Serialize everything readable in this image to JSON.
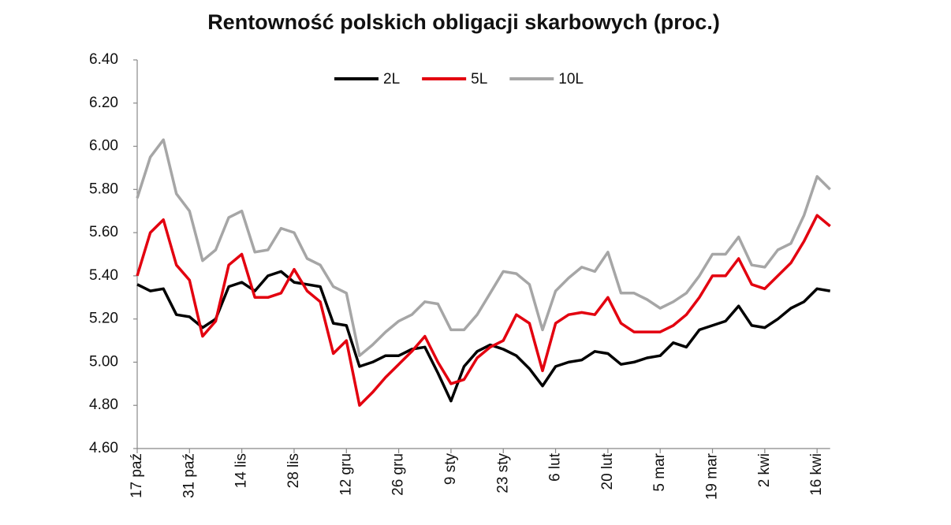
{
  "chart_data": {
    "type": "line",
    "title": "Rentowność polskich obligacji skarbowych (proc.)",
    "categories": [
      "17 paź",
      null,
      null,
      null,
      "31 paź",
      null,
      null,
      null,
      "14 lis",
      null,
      null,
      null,
      "28 lis",
      null,
      null,
      null,
      "12 gru",
      null,
      null,
      null,
      "26 gru",
      null,
      null,
      null,
      "9 sty",
      null,
      null,
      null,
      "23 sty",
      null,
      null,
      null,
      "6 lut",
      null,
      null,
      null,
      "20 lut",
      null,
      null,
      null,
      "5 mar",
      null,
      null,
      null,
      "19 mar",
      null,
      null,
      null,
      "2 kwi",
      null,
      null,
      null,
      "16 kwi",
      null
    ],
    "series": [
      {
        "name": "2L",
        "color": "#000000",
        "values": [
          5.36,
          5.33,
          5.34,
          5.22,
          5.21,
          5.16,
          5.2,
          5.35,
          5.37,
          5.33,
          5.4,
          5.42,
          5.37,
          5.36,
          5.35,
          5.18,
          5.17,
          4.98,
          5.0,
          5.03,
          5.03,
          5.06,
          5.07,
          4.95,
          4.82,
          4.98,
          5.05,
          5.08,
          5.06,
          5.03,
          4.97,
          4.89,
          4.98,
          5.0,
          5.01,
          5.05,
          5.04,
          4.99,
          5.0,
          5.02,
          5.03,
          5.09,
          5.07,
          5.15,
          5.17,
          5.19,
          5.26,
          5.17,
          5.16,
          5.2,
          5.25,
          5.28,
          5.34,
          5.33
        ]
      },
      {
        "name": "5L",
        "color": "#e3000f",
        "values": [
          5.4,
          5.6,
          5.66,
          5.45,
          5.38,
          5.12,
          5.19,
          5.45,
          5.5,
          5.3,
          5.3,
          5.32,
          5.43,
          5.33,
          5.28,
          5.04,
          5.1,
          4.8,
          4.86,
          4.93,
          4.99,
          5.05,
          5.12,
          5.0,
          4.9,
          4.92,
          5.02,
          5.07,
          5.1,
          5.22,
          5.18,
          4.96,
          5.18,
          5.22,
          5.23,
          5.22,
          5.3,
          5.18,
          5.14,
          5.14,
          5.14,
          5.17,
          5.22,
          5.3,
          5.4,
          5.4,
          5.48,
          5.36,
          5.34,
          5.4,
          5.46,
          5.56,
          5.68,
          5.63
        ]
      },
      {
        "name": "10L",
        "color": "#a6a6a6",
        "values": [
          5.76,
          5.95,
          6.03,
          5.78,
          5.7,
          5.47,
          5.52,
          5.67,
          5.7,
          5.51,
          5.52,
          5.62,
          5.6,
          5.48,
          5.45,
          5.35,
          5.32,
          5.03,
          5.08,
          5.14,
          5.19,
          5.22,
          5.28,
          5.27,
          5.15,
          5.15,
          5.22,
          5.32,
          5.42,
          5.41,
          5.36,
          5.15,
          5.33,
          5.39,
          5.44,
          5.42,
          5.51,
          5.32,
          5.32,
          5.29,
          5.25,
          5.28,
          5.32,
          5.4,
          5.5,
          5.5,
          5.58,
          5.45,
          5.44,
          5.52,
          5.55,
          5.68,
          5.86,
          5.8
        ]
      }
    ],
    "ylim": [
      4.6,
      6.4
    ],
    "yticks": [
      {
        "value": 4.6,
        "label": "4.60"
      },
      {
        "value": 4.8,
        "label": "4.80"
      },
      {
        "value": 5.0,
        "label": "5.00"
      },
      {
        "value": 5.2,
        "label": "5.20"
      },
      {
        "value": 5.4,
        "label": "5.40"
      },
      {
        "value": 5.6,
        "label": "5.60"
      },
      {
        "value": 5.8,
        "label": "5.80"
      },
      {
        "value": 6.0,
        "label": "6.00"
      },
      {
        "value": 6.2,
        "label": "6.20"
      },
      {
        "value": 6.4,
        "label": "6.40"
      }
    ],
    "grid": false,
    "legend": "top"
  }
}
